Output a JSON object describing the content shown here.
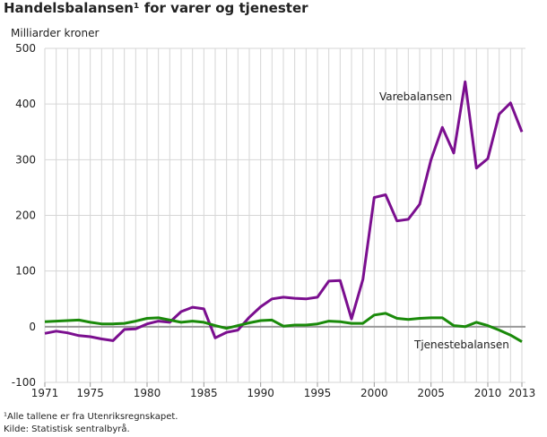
{
  "chart_data": {
    "type": "line",
    "title": "Handelsbalansen¹ for varer og tjenester",
    "ylabel": "Milliarder kroner",
    "xlabel": "",
    "xlim": [
      1971,
      2013
    ],
    "ylim": [
      -100,
      500
    ],
    "yticks": [
      -100,
      0,
      100,
      200,
      300,
      400,
      500
    ],
    "xticks": [
      1971,
      1975,
      1980,
      1985,
      1990,
      1995,
      2000,
      2005,
      2010,
      2013
    ],
    "grid": true,
    "x": [
      1971,
      1972,
      1973,
      1974,
      1975,
      1976,
      1977,
      1978,
      1979,
      1980,
      1981,
      1982,
      1983,
      1984,
      1985,
      1986,
      1987,
      1988,
      1989,
      1990,
      1991,
      1992,
      1993,
      1994,
      1995,
      1996,
      1997,
      1998,
      1999,
      2000,
      2001,
      2002,
      2003,
      2004,
      2005,
      2006,
      2007,
      2008,
      2009,
      2010,
      2011,
      2012,
      2013
    ],
    "series": [
      {
        "name": "Varebalansen",
        "color": "#7b0f8f",
        "values": [
          -12,
          -8,
          -11,
          -16,
          -18,
          -22,
          -25,
          -5,
          -4,
          5,
          10,
          8,
          27,
          35,
          32,
          -20,
          -10,
          -6,
          17,
          36,
          50,
          53,
          51,
          50,
          53,
          82,
          83,
          14,
          85,
          232,
          237,
          190,
          193,
          220,
          300,
          358,
          312,
          440,
          285,
          302,
          382,
          402,
          350
        ]
      },
      {
        "name": "Tjenestebalansen",
        "color": "#1a8a0a",
        "values": [
          9,
          10,
          11,
          12,
          8,
          5,
          5,
          6,
          10,
          15,
          16,
          12,
          8,
          10,
          8,
          2,
          -3,
          2,
          7,
          11,
          12,
          1,
          3,
          3,
          5,
          10,
          9,
          6,
          6,
          21,
          24,
          15,
          13,
          15,
          16,
          16,
          2,
          0,
          8,
          2,
          -6,
          -15,
          -27
        ]
      }
    ]
  },
  "footnotes": {
    "note": "¹Alle tallene er fra Utenriksregnskapet.",
    "source": "Kilde: Statistisk sentralbyrå."
  }
}
